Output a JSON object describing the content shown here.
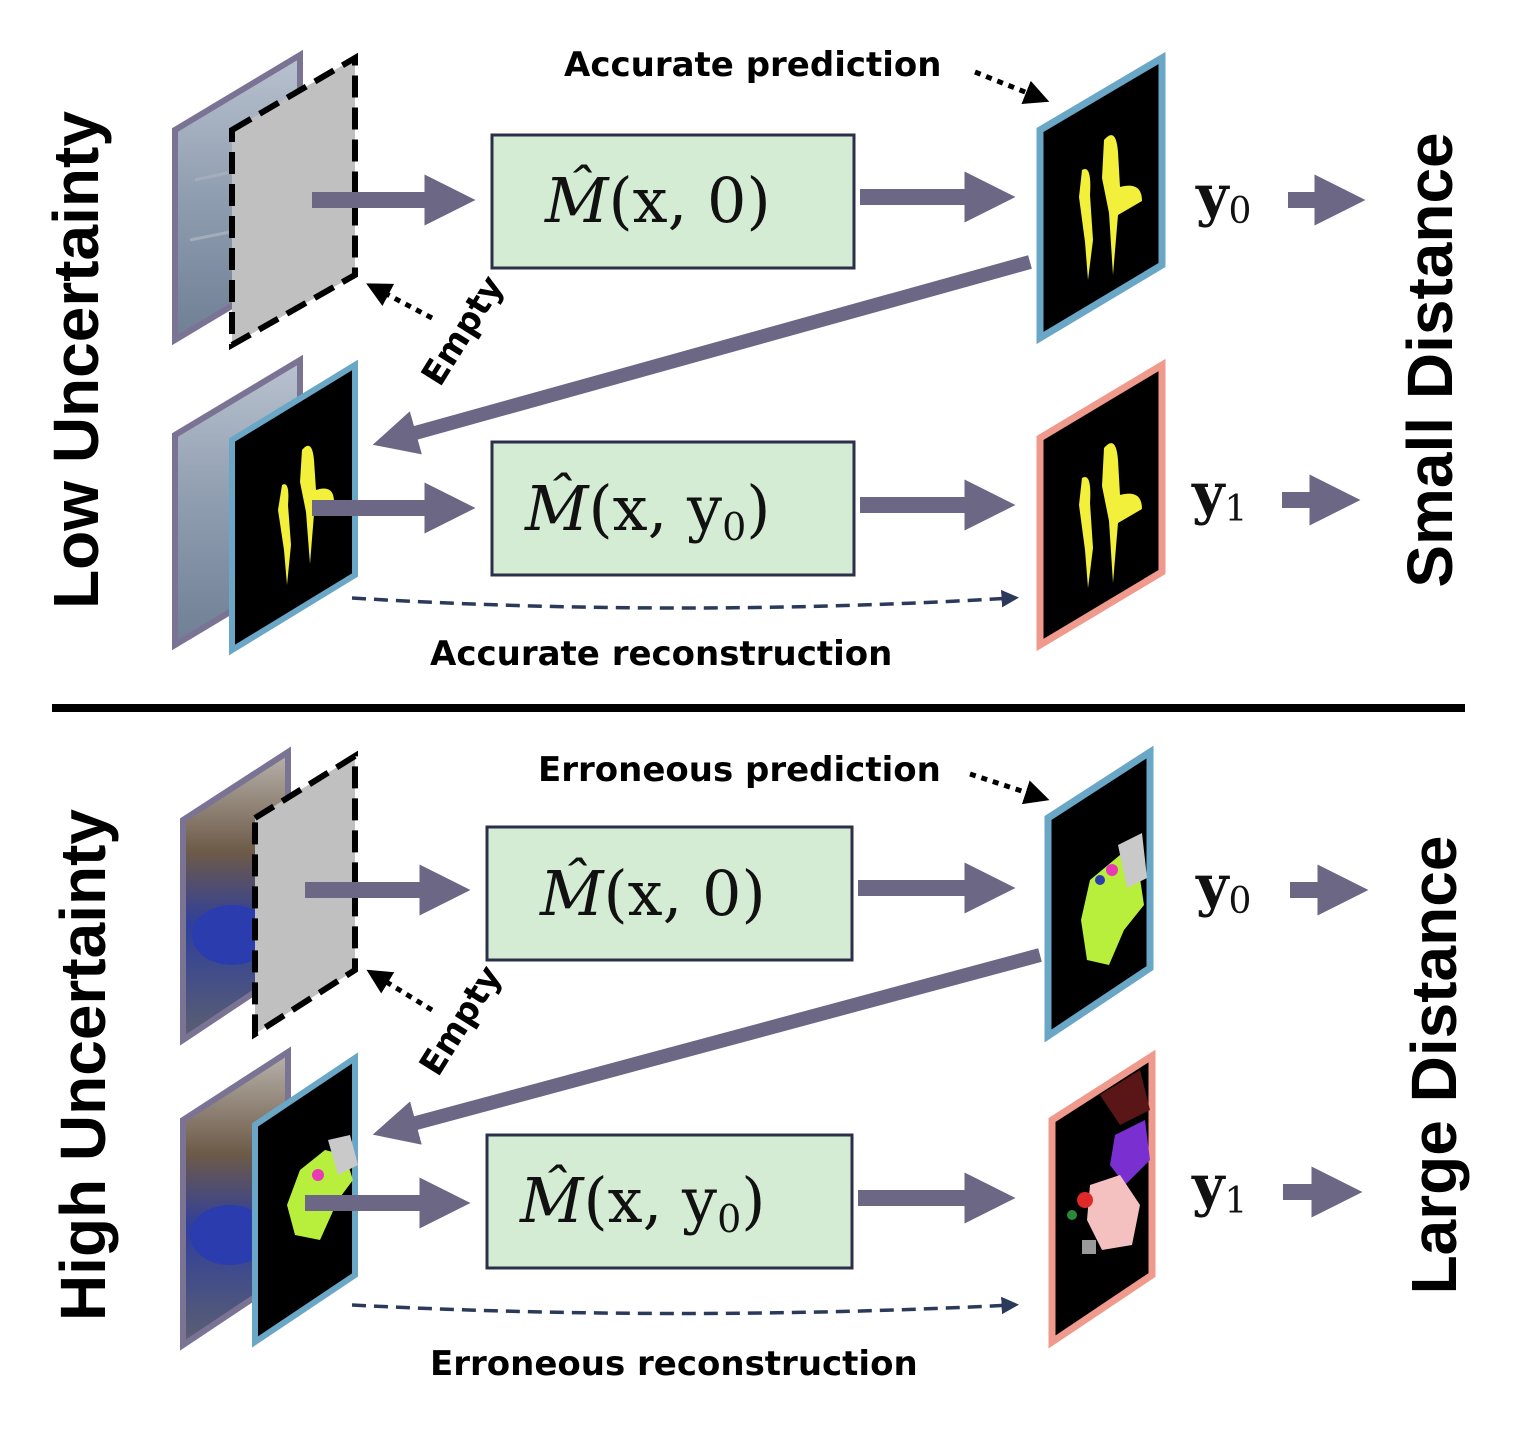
{
  "colors": {
    "box_fill": "#d4ebd4",
    "box_stroke": "#2b2f4a",
    "arrow": "#6b6785",
    "blue_frame": "#6aa6c6",
    "red_frame": "#ef9a8c",
    "dashed_line": "#2b3a5a"
  },
  "top": {
    "side_label": "Low Uncertainty",
    "right_label": "Small Distance",
    "pred_label": "Accurate prediction",
    "empty_label": "Empty",
    "recon_label": "Accurate reconstruction",
    "box1": {
      "model": "M̂",
      "args": "(x, 0)"
    },
    "box2": {
      "model": "M̂",
      "args": "(x, y",
      "sub": "0",
      "close": ")"
    },
    "y0": {
      "base": "y",
      "sub": "0"
    },
    "y1": {
      "base": "y",
      "sub": "1"
    }
  },
  "bottom": {
    "side_label": "High Uncertainty",
    "right_label": "Large Distance",
    "pred_label": "Erroneous prediction",
    "empty_label": "Empty",
    "recon_label": "Erroneous reconstruction",
    "box1": {
      "model": "M̂",
      "args": "(x, 0)"
    },
    "box2": {
      "model": "M̂",
      "args": "(x, y",
      "sub": "0",
      "close": ")"
    },
    "y0": {
      "base": "y",
      "sub": "0"
    },
    "y1": {
      "base": "y",
      "sub": "1"
    }
  }
}
